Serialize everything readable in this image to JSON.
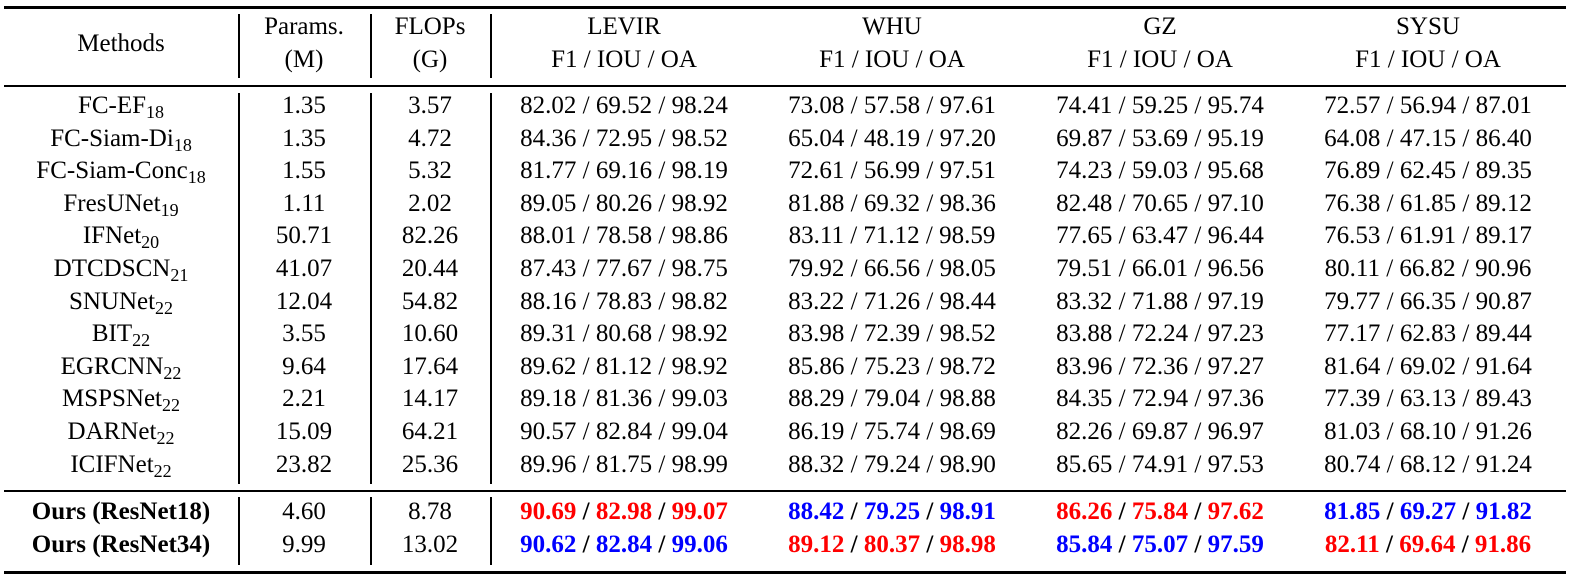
{
  "table": {
    "caption_peek": "",
    "headers": {
      "methods": "Methods",
      "params": [
        "Params.",
        "(M)"
      ],
      "flops": [
        "FLOPs",
        "(G)"
      ],
      "datasets": [
        {
          "name": "LEVIR",
          "metrics": "F1 / IOU / OA"
        },
        {
          "name": "WHU",
          "metrics": "F1 / IOU / OA"
        },
        {
          "name": "GZ",
          "metrics": "F1 / IOU / OA"
        },
        {
          "name": "SYSU",
          "metrics": "F1 / IOU / OA"
        }
      ]
    },
    "rows": [
      {
        "method": "FC-EF",
        "sub": "18",
        "params": "1.35",
        "flops": "3.57",
        "levir": "82.02 / 69.52 / 98.24",
        "whu": "73.08 / 57.58 / 97.61",
        "gz": "74.41 / 59.25 / 95.74",
        "sysu": "72.57 / 56.94 / 87.01"
      },
      {
        "method": "FC-Siam-Di",
        "sub": "18",
        "params": "1.35",
        "flops": "4.72",
        "levir": "84.36 / 72.95 / 98.52",
        "whu": "65.04 / 48.19 / 97.20",
        "gz": "69.87 / 53.69 / 95.19",
        "sysu": "64.08 / 47.15 / 86.40"
      },
      {
        "method": "FC-Siam-Conc",
        "sub": "18",
        "params": "1.55",
        "flops": "5.32",
        "levir": "81.77 / 69.16 / 98.19",
        "whu": "72.61 / 56.99 / 97.51",
        "gz": "74.23 / 59.03 / 95.68",
        "sysu": "76.89 / 62.45 / 89.35"
      },
      {
        "method": "FresUNet",
        "sub": "19",
        "params": "1.11",
        "flops": "2.02",
        "levir": "89.05 / 80.26 / 98.92",
        "whu": "81.88 / 69.32 / 98.36",
        "gz": "82.48 / 70.65 / 97.10",
        "sysu": "76.38 / 61.85 / 89.12"
      },
      {
        "method": "IFNet",
        "sub": "20",
        "params": "50.71",
        "flops": "82.26",
        "levir": "88.01 / 78.58 / 98.86",
        "whu": "83.11 / 71.12 / 98.59",
        "gz": "77.65 / 63.47 / 96.44",
        "sysu": "76.53 / 61.91 / 89.17"
      },
      {
        "method": "DTCDSCN",
        "sub": "21",
        "params": "41.07",
        "flops": "20.44",
        "levir": "87.43 / 77.67 / 98.75",
        "whu": "79.92 / 66.56 / 98.05",
        "gz": "79.51 / 66.01 / 96.56",
        "sysu": "80.11 / 66.82 / 90.96"
      },
      {
        "method": "SNUNet",
        "sub": "22",
        "params": "12.04",
        "flops": "54.82",
        "levir": "88.16 / 78.83 / 98.82",
        "whu": "83.22 / 71.26 / 98.44",
        "gz": "83.32 / 71.88 / 97.19",
        "sysu": "79.77 / 66.35 / 90.87"
      },
      {
        "method": "BIT",
        "sub": "22",
        "params": "3.55",
        "flops": "10.60",
        "levir": "89.31 / 80.68 / 98.92",
        "whu": "83.98 / 72.39 / 98.52",
        "gz": "83.88 / 72.24 / 97.23",
        "sysu": "77.17 / 62.83 / 89.44"
      },
      {
        "method": "EGRCNN",
        "sub": "22",
        "params": "9.64",
        "flops": "17.64",
        "levir": "89.62 / 81.12 / 98.92",
        "whu": "85.86 / 75.23 / 98.72",
        "gz": "83.96 / 72.36 / 97.27",
        "sysu": "81.64 / 69.02 / 91.64"
      },
      {
        "method": "MSPSNet",
        "sub": "22",
        "params": "2.21",
        "flops": "14.17",
        "levir": "89.18 / 81.36 / 99.03",
        "whu": "88.29 / 79.04 / 98.88",
        "gz": "84.35 / 72.94 / 97.36",
        "sysu": "77.39 / 63.13 / 89.43"
      },
      {
        "method": "DARNet",
        "sub": "22",
        "params": "15.09",
        "flops": "64.21",
        "levir": "90.57 / 82.84 / 99.04",
        "whu": "86.19 / 75.74 / 98.69",
        "gz": "82.26 / 69.87 / 96.97",
        "sysu": "81.03 / 68.10 / 91.26"
      },
      {
        "method": "ICIFNet",
        "sub": "22",
        "params": "23.82",
        "flops": "25.36",
        "levir": "89.96 / 81.75 / 98.99",
        "whu": "88.32 / 79.24 / 98.90",
        "gz": "85.65 / 74.91 / 97.53",
        "sysu": "80.74 / 68.12 / 91.24"
      }
    ],
    "ours": [
      {
        "method": "Ours (ResNet18)",
        "params": "4.60",
        "flops": "8.78",
        "levir": [
          {
            "v": "90.69",
            "c": "red"
          },
          {
            "v": "82.98",
            "c": "red"
          },
          {
            "v": "99.07",
            "c": "red"
          }
        ],
        "whu": [
          {
            "v": "88.42",
            "c": "blue"
          },
          {
            "v": "79.25",
            "c": "blue"
          },
          {
            "v": "98.91",
            "c": "blue"
          }
        ],
        "gz": [
          {
            "v": "86.26",
            "c": "red"
          },
          {
            "v": "75.84",
            "c": "red"
          },
          {
            "v": "97.62",
            "c": "red"
          }
        ],
        "sysu": [
          {
            "v": "81.85",
            "c": "blue"
          },
          {
            "v": "69.27",
            "c": "blue"
          },
          {
            "v": "91.82",
            "c": "blue"
          }
        ]
      },
      {
        "method": "Ours (ResNet34)",
        "params": "9.99",
        "flops": "13.02",
        "levir": [
          {
            "v": "90.62",
            "c": "blue"
          },
          {
            "v": "82.84",
            "c": "blue"
          },
          {
            "v": "99.06",
            "c": "blue"
          }
        ],
        "whu": [
          {
            "v": "89.12",
            "c": "red"
          },
          {
            "v": "80.37",
            "c": "red"
          },
          {
            "v": "98.98",
            "c": "red"
          }
        ],
        "gz": [
          {
            "v": "85.84",
            "c": "blue"
          },
          {
            "v": "75.07",
            "c": "blue"
          },
          {
            "v": "97.59",
            "c": "blue"
          }
        ],
        "sysu": [
          {
            "v": "82.11",
            "c": "red"
          },
          {
            "v": "69.64",
            "c": "red"
          },
          {
            "v": "91.86",
            "c": "red"
          }
        ]
      }
    ],
    "separator": " / ",
    "colors": {
      "red": "#ff0000",
      "blue": "#0000ff",
      "rule": "#000000"
    }
  }
}
